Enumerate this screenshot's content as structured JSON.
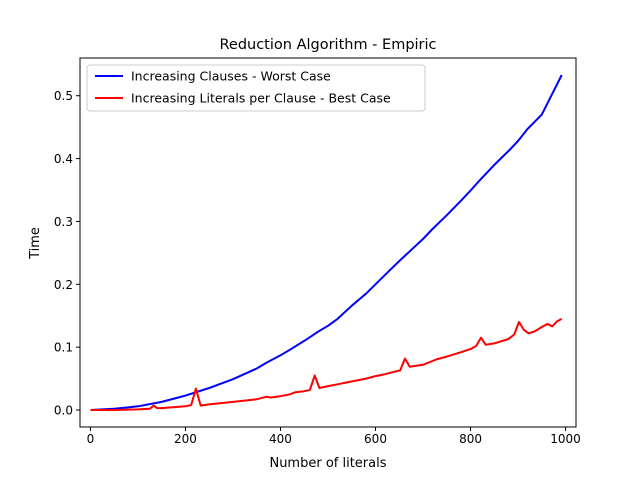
{
  "chart_data": {
    "type": "line",
    "title": "Reduction Algorithm - Empiric",
    "xlabel": "Number of literals",
    "ylabel": "Time",
    "xlim": [
      -22,
      1022
    ],
    "ylim": [
      -0.027,
      0.56
    ],
    "xticks": [
      0,
      200,
      400,
      600,
      800,
      1000
    ],
    "yticks": [
      0.0,
      0.1,
      0.2,
      0.3,
      0.4,
      0.5
    ],
    "xtick_labels": [
      "0",
      "200",
      "400",
      "600",
      "800",
      "1000"
    ],
    "ytick_labels": [
      "0.0",
      "0.1",
      "0.2",
      "0.3",
      "0.4",
      "0.5"
    ],
    "grid": false,
    "legend_position": "upper-left",
    "series": [
      {
        "name": "Increasing Clauses - Worst Case",
        "color": "#0000ff",
        "x": [
          0,
          50,
          100,
          150,
          200,
          250,
          300,
          350,
          370,
          400,
          420,
          450,
          480,
          500,
          520,
          550,
          580,
          600,
          620,
          650,
          680,
          700,
          720,
          750,
          780,
          800,
          820,
          850,
          880,
          900,
          920,
          950,
          970,
          992
        ],
        "y": [
          0.0,
          0.002,
          0.006,
          0.013,
          0.023,
          0.035,
          0.049,
          0.066,
          0.075,
          0.087,
          0.096,
          0.11,
          0.125,
          0.134,
          0.145,
          0.166,
          0.185,
          0.2,
          0.215,
          0.237,
          0.258,
          0.272,
          0.288,
          0.31,
          0.333,
          0.349,
          0.366,
          0.39,
          0.412,
          0.428,
          0.447,
          0.47,
          0.5,
          0.533
        ]
      },
      {
        "name": "Increasing Literals per Clause - Best Case",
        "color": "#ff0000",
        "x": [
          0,
          50,
          100,
          125,
          133,
          140,
          150,
          200,
          212,
          222,
          232,
          250,
          300,
          350,
          370,
          380,
          400,
          420,
          430,
          450,
          462,
          472,
          482,
          500,
          520,
          540,
          560,
          580,
          600,
          620,
          640,
          652,
          662,
          672,
          700,
          720,
          730,
          750,
          780,
          800,
          812,
          822,
          832,
          850,
          880,
          892,
          902,
          912,
          922,
          935,
          950,
          962,
          972,
          982,
          992
        ],
        "y": [
          0.0,
          0.0,
          0.001,
          0.002,
          0.007,
          0.003,
          0.003,
          0.006,
          0.008,
          0.034,
          0.007,
          0.009,
          0.013,
          0.017,
          0.021,
          0.02,
          0.022,
          0.025,
          0.028,
          0.03,
          0.032,
          0.055,
          0.035,
          0.038,
          0.041,
          0.044,
          0.047,
          0.05,
          0.054,
          0.057,
          0.061,
          0.063,
          0.082,
          0.069,
          0.072,
          0.078,
          0.081,
          0.085,
          0.092,
          0.097,
          0.102,
          0.115,
          0.104,
          0.106,
          0.113,
          0.12,
          0.14,
          0.128,
          0.122,
          0.125,
          0.132,
          0.137,
          0.133,
          0.141,
          0.145
        ]
      }
    ]
  }
}
